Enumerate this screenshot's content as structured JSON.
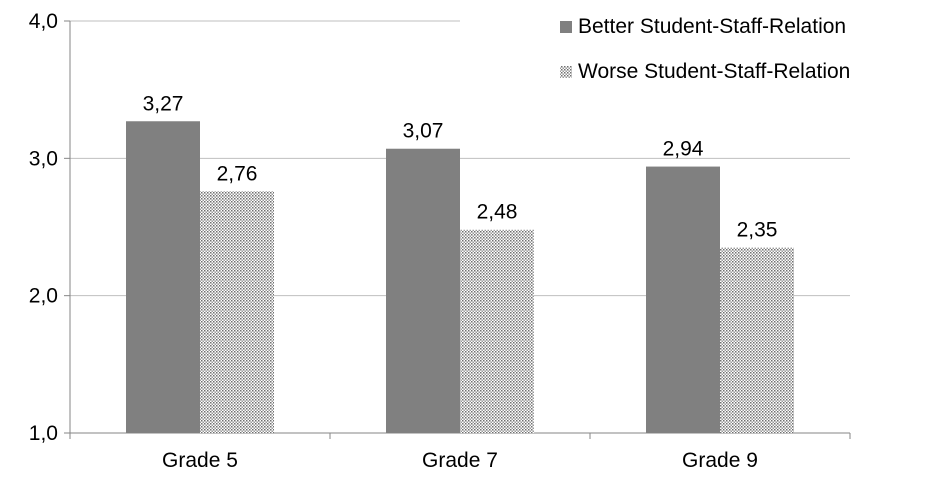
{
  "chart_data": {
    "type": "bar",
    "categories": [
      "Grade 5",
      "Grade 7",
      "Grade 9"
    ],
    "series": [
      {
        "name": "Better Student-Staff-Relation",
        "values": [
          3.27,
          3.07,
          2.94
        ],
        "labels": [
          "3,27",
          "3,07",
          "2,94"
        ],
        "color": "#808080",
        "pattern": "solid"
      },
      {
        "name": "Worse Student-Staff-Relation",
        "values": [
          2.76,
          2.48,
          2.35
        ],
        "labels": [
          "2,76",
          "2,48",
          "2,35"
        ],
        "color": "#d9d9d9",
        "pattern": "dotted"
      }
    ],
    "yticks": [
      1.0,
      2.0,
      3.0,
      4.0
    ],
    "ytick_labels": [
      "1,0",
      "2,0",
      "3,0",
      "4,0"
    ],
    "ylim": [
      1.0,
      4.0
    ],
    "grid": true,
    "legend_position": "top-right",
    "title": "",
    "xlabel": "",
    "ylabel": ""
  }
}
